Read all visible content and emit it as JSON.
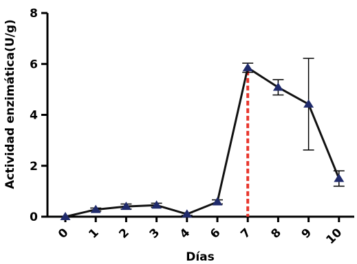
{
  "chart_data": {
    "type": "line",
    "title": "",
    "xlabel": "Días",
    "ylabel": "Actividad enzimática(U/g)",
    "categories": [
      "0",
      "1",
      "2",
      "3",
      "4",
      "6",
      "7",
      "8",
      "9",
      "10"
    ],
    "series": [
      {
        "values": [
          0.0,
          0.28,
          0.4,
          0.45,
          0.1,
          0.58,
          5.85,
          5.08,
          4.42,
          1.5
        ],
        "error": [
          0.0,
          0.06,
          0.1,
          0.08,
          0.05,
          0.08,
          0.18,
          0.3,
          1.8,
          0.3
        ],
        "color": "#1f2a6b",
        "marker": "triangle"
      }
    ],
    "ylim": [
      0,
      8
    ],
    "yticks": [
      0,
      2,
      4,
      6,
      8
    ],
    "highlight": {
      "category": "7",
      "color": "#e8352c",
      "style": "dashed"
    },
    "grid": false
  }
}
